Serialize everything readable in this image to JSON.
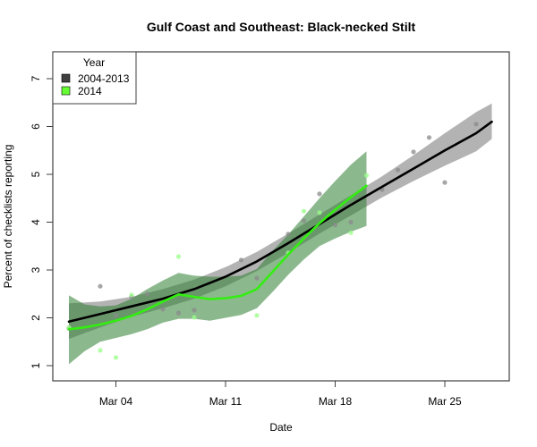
{
  "chart_data": {
    "type": "scatter",
    "title": "Gulf Coast and Southeast: Black-necked Stilt",
    "xlabel": "Date",
    "ylabel": "Percent of checklists reporting",
    "x_unit": "day of March",
    "xlim": [
      0,
      30
    ],
    "ylim": [
      0.7,
      7.6
    ],
    "x_ticks": [
      {
        "value": 4,
        "label": "Mar 04"
      },
      {
        "value": 11,
        "label": "Mar 11"
      },
      {
        "value": 18,
        "label": "Mar 18"
      },
      {
        "value": 25,
        "label": "Mar 25"
      }
    ],
    "y_ticks": [
      {
        "value": 1,
        "label": "1"
      },
      {
        "value": 2,
        "label": "2"
      },
      {
        "value": 3,
        "label": "3"
      },
      {
        "value": 4,
        "label": "4"
      },
      {
        "value": 5,
        "label": "5"
      },
      {
        "value": 6,
        "label": "6"
      },
      {
        "value": 7,
        "label": "7"
      }
    ],
    "legend": {
      "title": "Year",
      "position": "top-left",
      "entries": [
        {
          "label": "2004-2013",
          "color": "#404040"
        },
        {
          "label": "2014",
          "color": "#66ff33"
        }
      ]
    },
    "series": [
      {
        "name": "2004-2013",
        "point_color": "#8a8a8a",
        "line_color": "#000000",
        "band_color": "#a6a6a6",
        "points": [
          {
            "x": 1,
            "y": 1.78
          },
          {
            "x": 3,
            "y": 2.66
          },
          {
            "x": 4,
            "y": 2.05
          },
          {
            "x": 5,
            "y": 2.44
          },
          {
            "x": 6,
            "y": 2.5
          },
          {
            "x": 7,
            "y": 2.18
          },
          {
            "x": 8,
            "y": 2.1
          },
          {
            "x": 9,
            "y": 2.16
          },
          {
            "x": 12,
            "y": 3.21
          },
          {
            "x": 13,
            "y": 2.83
          },
          {
            "x": 15,
            "y": 3.75
          },
          {
            "x": 16,
            "y": 4.03
          },
          {
            "x": 17,
            "y": 4.59
          },
          {
            "x": 18,
            "y": 3.94
          },
          {
            "x": 19,
            "y": 4.0
          },
          {
            "x": 21,
            "y": 4.68
          },
          {
            "x": 22,
            "y": 5.09
          },
          {
            "x": 23,
            "y": 5.47
          },
          {
            "x": 24,
            "y": 5.77
          },
          {
            "x": 25,
            "y": 4.83
          },
          {
            "x": 27,
            "y": 6.05
          }
        ],
        "smooth": [
          {
            "x": 1,
            "y": 1.92,
            "lo": 1.56,
            "hi": 2.3
          },
          {
            "x": 3,
            "y": 2.08,
            "lo": 1.8,
            "hi": 2.34
          },
          {
            "x": 5,
            "y": 2.24,
            "lo": 2.02,
            "hi": 2.44
          },
          {
            "x": 7,
            "y": 2.4,
            "lo": 2.2,
            "hi": 2.6
          },
          {
            "x": 9,
            "y": 2.6,
            "lo": 2.4,
            "hi": 2.8
          },
          {
            "x": 11,
            "y": 2.86,
            "lo": 2.66,
            "hi": 3.06
          },
          {
            "x": 13,
            "y": 3.18,
            "lo": 2.98,
            "hi": 3.38
          },
          {
            "x": 15,
            "y": 3.56,
            "lo": 3.36,
            "hi": 3.76
          },
          {
            "x": 17,
            "y": 3.96,
            "lo": 3.76,
            "hi": 4.16
          },
          {
            "x": 19,
            "y": 4.36,
            "lo": 4.14,
            "hi": 4.56
          },
          {
            "x": 21,
            "y": 4.74,
            "lo": 4.52,
            "hi": 4.96
          },
          {
            "x": 23,
            "y": 5.12,
            "lo": 4.86,
            "hi": 5.4
          },
          {
            "x": 25,
            "y": 5.5,
            "lo": 5.18,
            "hi": 5.86
          },
          {
            "x": 27,
            "y": 5.86,
            "lo": 5.48,
            "hi": 6.3
          },
          {
            "x": 28,
            "y": 6.1,
            "lo": 5.74,
            "hi": 6.48
          }
        ]
      },
      {
        "name": "2014",
        "point_color": "#99ff88",
        "line_color": "#33ee11",
        "band_color": "#2e7d32",
        "points": [
          {
            "x": 1,
            "y": 1.8
          },
          {
            "x": 3,
            "y": 1.32
          },
          {
            "x": 4,
            "y": 1.17
          },
          {
            "x": 5,
            "y": 2.48
          },
          {
            "x": 8,
            "y": 3.28
          },
          {
            "x": 9,
            "y": 2.01
          },
          {
            "x": 13,
            "y": 2.05
          },
          {
            "x": 15,
            "y": 3.36
          },
          {
            "x": 16,
            "y": 4.23
          },
          {
            "x": 17,
            "y": 4.2
          },
          {
            "x": 19,
            "y": 3.78
          },
          {
            "x": 20,
            "y": 4.98
          }
        ],
        "smooth": [
          {
            "x": 1,
            "y": 1.76,
            "lo": 1.03,
            "hi": 2.47
          },
          {
            "x": 2,
            "y": 1.8,
            "lo": 1.3,
            "hi": 2.28
          },
          {
            "x": 3,
            "y": 1.86,
            "lo": 1.5,
            "hi": 2.24
          },
          {
            "x": 4,
            "y": 1.94,
            "lo": 1.58,
            "hi": 2.26
          },
          {
            "x": 5,
            "y": 2.04,
            "lo": 1.66,
            "hi": 2.4
          },
          {
            "x": 6,
            "y": 2.18,
            "lo": 1.76,
            "hi": 2.6
          },
          {
            "x": 7,
            "y": 2.34,
            "lo": 1.9,
            "hi": 2.78
          },
          {
            "x": 8,
            "y": 2.49,
            "lo": 1.98,
            "hi": 2.94
          },
          {
            "x": 9,
            "y": 2.44,
            "lo": 1.98,
            "hi": 2.88
          },
          {
            "x": 10,
            "y": 2.39,
            "lo": 1.94,
            "hi": 2.86
          },
          {
            "x": 11,
            "y": 2.41,
            "lo": 2.0,
            "hi": 2.86
          },
          {
            "x": 12,
            "y": 2.46,
            "lo": 2.06,
            "hi": 2.88
          },
          {
            "x": 13,
            "y": 2.6,
            "lo": 2.2,
            "hi": 3.02
          },
          {
            "x": 14,
            "y": 2.96,
            "lo": 2.54,
            "hi": 3.4
          },
          {
            "x": 15,
            "y": 3.32,
            "lo": 2.9,
            "hi": 3.74
          },
          {
            "x": 16,
            "y": 3.66,
            "lo": 3.22,
            "hi": 4.12
          },
          {
            "x": 17,
            "y": 3.98,
            "lo": 3.5,
            "hi": 4.5
          },
          {
            "x": 18,
            "y": 4.26,
            "lo": 3.66,
            "hi": 4.86
          },
          {
            "x": 19,
            "y": 4.52,
            "lo": 3.8,
            "hi": 5.2
          },
          {
            "x": 20,
            "y": 4.76,
            "lo": 3.92,
            "hi": 5.48
          }
        ]
      }
    ]
  }
}
